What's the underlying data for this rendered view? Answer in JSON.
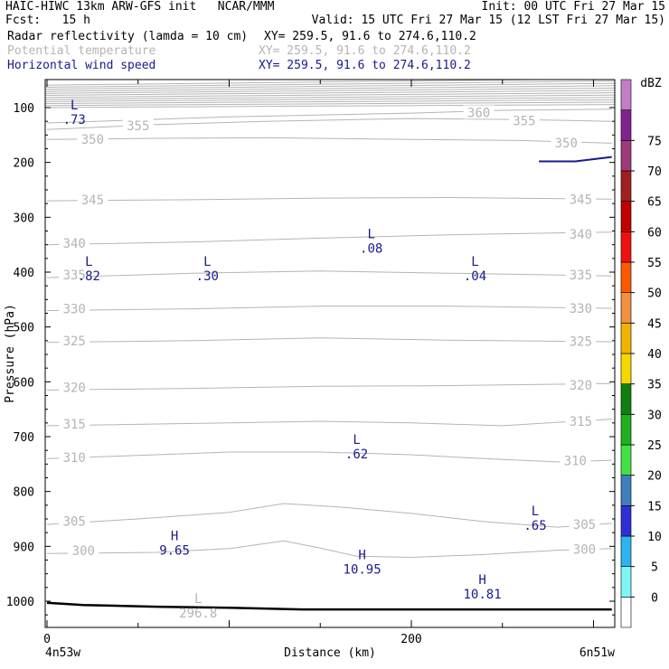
{
  "header": {
    "title_left": "HAIC-HIWC 13km ARW-GFS init   NCAR/MMM",
    "title_right": "Init: 00 UTC Fri 27 Mar 15",
    "fcst_label": "Fcst:   15 h",
    "valid_label": "Valid: 15 UTC Fri 27 Mar 15 (12 LST Fri 27 Mar 15)",
    "fields": [
      {
        "name": "Radar reflectivity (lamda = 10 cm)",
        "xy": "XY= 259.5, 91.6 to 274.6,110.2",
        "color": "#000000"
      },
      {
        "name": "Potential temperature",
        "xy": "XY= 259.5, 91.6 to 274.6,110.2",
        "color": "#b4b4b4"
      },
      {
        "name": "Horizontal wind speed",
        "xy": "XY= 259.5, 91.6 to 274.6,110.2",
        "color": "#1a1a8c"
      }
    ]
  },
  "colorbar": {
    "unit": "dBZ",
    "levels": [
      "0",
      "5",
      "10",
      "15",
      "20",
      "25",
      "30",
      "35",
      "40",
      "45",
      "50",
      "55",
      "60",
      "65",
      "70",
      "75"
    ],
    "colors": [
      "#ffffff",
      "#7ff5f5",
      "#2cb4f0",
      "#2f2fd6",
      "#3f7fbf",
      "#44e044",
      "#22b022",
      "#0f7f0f",
      "#f5d800",
      "#f0b400",
      "#f09040",
      "#ff5a00",
      "#f01010",
      "#c00000",
      "#a02020",
      "#9d3a7a",
      "#80238f",
      "#c27fc7"
    ]
  },
  "chart_data": {
    "type": "contour",
    "xlabel": "Distance (km)",
    "ylabel": "Pressure (hPa)",
    "x_ticks": [
      "0",
      "200"
    ],
    "x_tick_values": [
      0,
      200
    ],
    "xlim": [
      0,
      310
    ],
    "y_ticks": [
      "100",
      "200",
      "300",
      "400",
      "500",
      "600",
      "700",
      "800",
      "900",
      "1000"
    ],
    "y_tick_values": [
      100,
      200,
      300,
      400,
      500,
      600,
      700,
      800,
      900,
      1000
    ],
    "ylim": [
      50,
      1050
    ],
    "left_endpoint": "4n53w",
    "right_endpoint": "6n51w",
    "theta_color": "#b4b4b4",
    "wind_color": "#1a1a8c",
    "theta_contours": [
      {
        "label": "300",
        "points": [
          [
            0,
            913
          ],
          [
            60,
            911
          ],
          [
            100,
            904
          ],
          [
            130,
            890
          ],
          [
            150,
            903
          ],
          [
            170,
            918
          ],
          [
            200,
            920
          ],
          [
            240,
            915
          ],
          [
            280,
            907
          ],
          [
            310,
            904
          ]
        ],
        "label_at": [
          [
            20,
            908
          ],
          [
            295,
            905
          ]
        ]
      },
      {
        "label": "305",
        "points": [
          [
            0,
            860
          ],
          [
            50,
            850
          ],
          [
            100,
            838
          ],
          [
            130,
            822
          ],
          [
            160,
            828
          ],
          [
            200,
            840
          ],
          [
            240,
            855
          ],
          [
            280,
            865
          ],
          [
            310,
            858
          ]
        ],
        "label_at": [
          [
            15,
            854
          ],
          [
            295,
            860
          ]
        ]
      },
      {
        "label": "310",
        "points": [
          [
            0,
            740
          ],
          [
            60,
            733
          ],
          [
            100,
            728
          ],
          [
            150,
            728
          ],
          [
            200,
            733
          ],
          [
            240,
            740
          ],
          [
            280,
            746
          ],
          [
            310,
            743
          ]
        ],
        "label_at": [
          [
            15,
            738
          ],
          [
            290,
            744
          ]
        ]
      },
      {
        "label": "315",
        "points": [
          [
            0,
            680
          ],
          [
            80,
            676
          ],
          [
            150,
            672
          ],
          [
            200,
            675
          ],
          [
            250,
            680
          ],
          [
            310,
            668
          ]
        ],
        "label_at": [
          [
            15,
            677
          ],
          [
            293,
            672
          ]
        ]
      },
      {
        "label": "320",
        "points": [
          [
            0,
            615
          ],
          [
            80,
            612
          ],
          [
            150,
            608
          ],
          [
            220,
            607
          ],
          [
            310,
            603
          ]
        ],
        "label_at": [
          [
            15,
            610
          ],
          [
            293,
            606
          ]
        ]
      },
      {
        "label": "325",
        "points": [
          [
            0,
            528
          ],
          [
            80,
            525
          ],
          [
            150,
            520
          ],
          [
            220,
            524
          ],
          [
            310,
            527
          ]
        ],
        "label_at": [
          [
            15,
            525
          ],
          [
            293,
            526
          ]
        ]
      },
      {
        "label": "330",
        "points": [
          [
            0,
            470
          ],
          [
            80,
            467
          ],
          [
            150,
            462
          ],
          [
            220,
            462
          ],
          [
            310,
            466
          ]
        ],
        "label_at": [
          [
            15,
            467
          ],
          [
            293,
            466
          ]
        ]
      },
      {
        "label": "335",
        "points": [
          [
            0,
            410
          ],
          [
            80,
            402
          ],
          [
            150,
            398
          ],
          [
            220,
            402
          ],
          [
            310,
            407
          ]
        ],
        "label_at": [
          [
            15,
            405
          ],
          [
            293,
            405
          ]
        ]
      },
      {
        "label": "340",
        "points": [
          [
            0,
            350
          ],
          [
            80,
            345
          ],
          [
            150,
            338
          ],
          [
            220,
            332
          ],
          [
            310,
            327
          ]
        ],
        "label_at": [
          [
            15,
            347
          ],
          [
            293,
            331
          ]
        ]
      },
      {
        "label": "345",
        "points": [
          [
            0,
            270
          ],
          [
            80,
            268
          ],
          [
            150,
            265
          ],
          [
            220,
            264
          ],
          [
            310,
            267
          ]
        ],
        "label_at": [
          [
            25,
            268
          ],
          [
            293,
            267
          ]
        ]
      },
      {
        "label": "350",
        "points": [
          [
            0,
            158
          ],
          [
            60,
            156
          ],
          [
            120,
            155
          ],
          [
            200,
            158
          ],
          [
            260,
            160
          ],
          [
            310,
            165
          ]
        ],
        "label_at": [
          [
            25,
            158
          ],
          [
            285,
            164
          ]
        ]
      },
      {
        "label": "355",
        "points": [
          [
            0,
            140
          ],
          [
            60,
            131
          ],
          [
            120,
            125
          ],
          [
            200,
            120
          ],
          [
            260,
            122
          ],
          [
            310,
            125
          ]
        ],
        "label_at": [
          [
            50,
            133
          ],
          [
            262,
            124
          ]
        ]
      },
      {
        "label": "360",
        "points": [
          [
            0,
            128
          ],
          [
            100,
            117
          ],
          [
            200,
            110
          ],
          [
            250,
            105
          ],
          [
            310,
            103
          ]
        ],
        "label_at": [
          [
            237,
            109
          ]
        ]
      }
    ],
    "wind_extrema": [
      {
        "type": "L",
        "value": ".73",
        "x": 15,
        "p": 110
      },
      {
        "type": "L",
        "value": ".82",
        "x": 23,
        "p": 395
      },
      {
        "type": "L",
        "value": ".30",
        "x": 88,
        "p": 395
      },
      {
        "type": "L",
        "value": ".08",
        "x": 178,
        "p": 345
      },
      {
        "type": "L",
        "value": ".04",
        "x": 235,
        "p": 395
      },
      {
        "type": "L",
        "value": ".62",
        "x": 170,
        "p": 720
      },
      {
        "type": "L",
        "value": ".65",
        "x": 268,
        "p": 850
      },
      {
        "type": "H",
        "value": "9.65",
        "x": 70,
        "p": 895
      },
      {
        "type": "H",
        "value": "10.95",
        "x": 173,
        "p": 930
      },
      {
        "type": "H",
        "value": "10.81",
        "x": 239,
        "p": 975
      }
    ],
    "theta_extrema": [
      {
        "type": "L",
        "value": "296.8",
        "x": 83,
        "p": 1010
      }
    ],
    "wind_contour": {
      "points": [
        [
          270,
          198
        ],
        [
          290,
          198
        ],
        [
          310,
          190
        ]
      ]
    },
    "surface": {
      "points": [
        [
          0,
          1003
        ],
        [
          20,
          1007
        ],
        [
          60,
          1010
        ],
        [
          100,
          1012
        ],
        [
          140,
          1015
        ],
        [
          200,
          1015
        ],
        [
          310,
          1015
        ]
      ]
    }
  }
}
